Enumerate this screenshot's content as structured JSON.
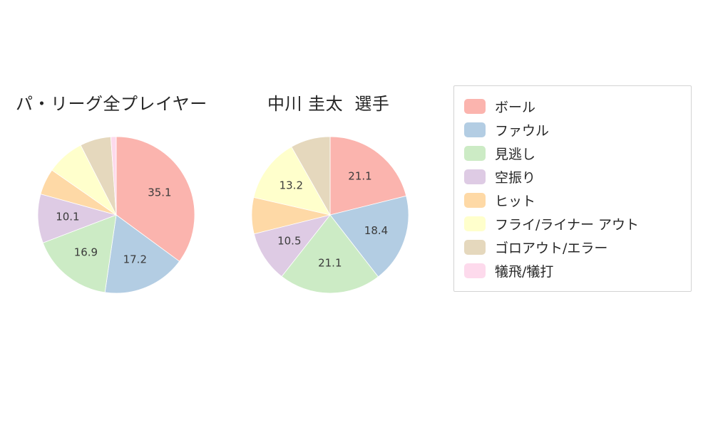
{
  "chart_data": [
    {
      "type": "pie",
      "title": "パ・リーグ全プレイヤー",
      "labels": [
        "ボール",
        "ファウル",
        "見逃し",
        "空振り",
        "ヒット",
        "フライ/ライナー アウト",
        "ゴロアウト/エラー",
        "犠飛/犠打"
      ],
      "values": [
        35.1,
        17.2,
        16.9,
        10.1,
        5.4,
        7.8,
        6.4,
        1.1
      ],
      "shown_value_labels": [
        "35.1",
        "17.2",
        "16.9",
        "10.1"
      ],
      "colors": [
        "#fbb4ae",
        "#b3cde3",
        "#ccebc5",
        "#decbe4",
        "#fed9a6",
        "#ffffcc",
        "#e5d8bd",
        "#fddaec"
      ],
      "start_angle_deg": 90,
      "direction": "clockwise",
      "label_min": 10
    },
    {
      "type": "pie",
      "title": "中川 圭太  選手",
      "labels": [
        "ボール",
        "ファウル",
        "見逃し",
        "空振り",
        "ヒット",
        "フライ/ライナー アウト",
        "ゴロアウト/エラー",
        "犠飛/犠打"
      ],
      "values": [
        21.1,
        18.4,
        21.1,
        10.5,
        7.5,
        13.2,
        8.2,
        0
      ],
      "shown_value_labels": [
        "21.1",
        "18.4",
        "21.1",
        "10.5",
        "13.2"
      ],
      "colors": [
        "#fbb4ae",
        "#b3cde3",
        "#ccebc5",
        "#decbe4",
        "#fed9a6",
        "#ffffcc",
        "#e5d8bd",
        "#fddaec"
      ],
      "start_angle_deg": 90,
      "direction": "clockwise",
      "label_min": 10
    }
  ],
  "legend": {
    "position": "right",
    "items": [
      {
        "label": "ボール",
        "color": "#fbb4ae"
      },
      {
        "label": "ファウル",
        "color": "#b3cde3"
      },
      {
        "label": "見逃し",
        "color": "#ccebc5"
      },
      {
        "label": "空振り",
        "color": "#decbe4"
      },
      {
        "label": "ヒット",
        "color": "#fed9a6"
      },
      {
        "label": "フライ/ライナー アウト",
        "color": "#ffffcc"
      },
      {
        "label": "ゴロアウト/エラー",
        "color": "#e5d8bd"
      },
      {
        "label": "犠飛/犠打",
        "color": "#fddaec"
      }
    ]
  },
  "style": {
    "slice_label_color": "#3b3b3b",
    "title_color": "#262626",
    "legend_border_color": "#d3d3d3",
    "background": "#ffffff"
  }
}
